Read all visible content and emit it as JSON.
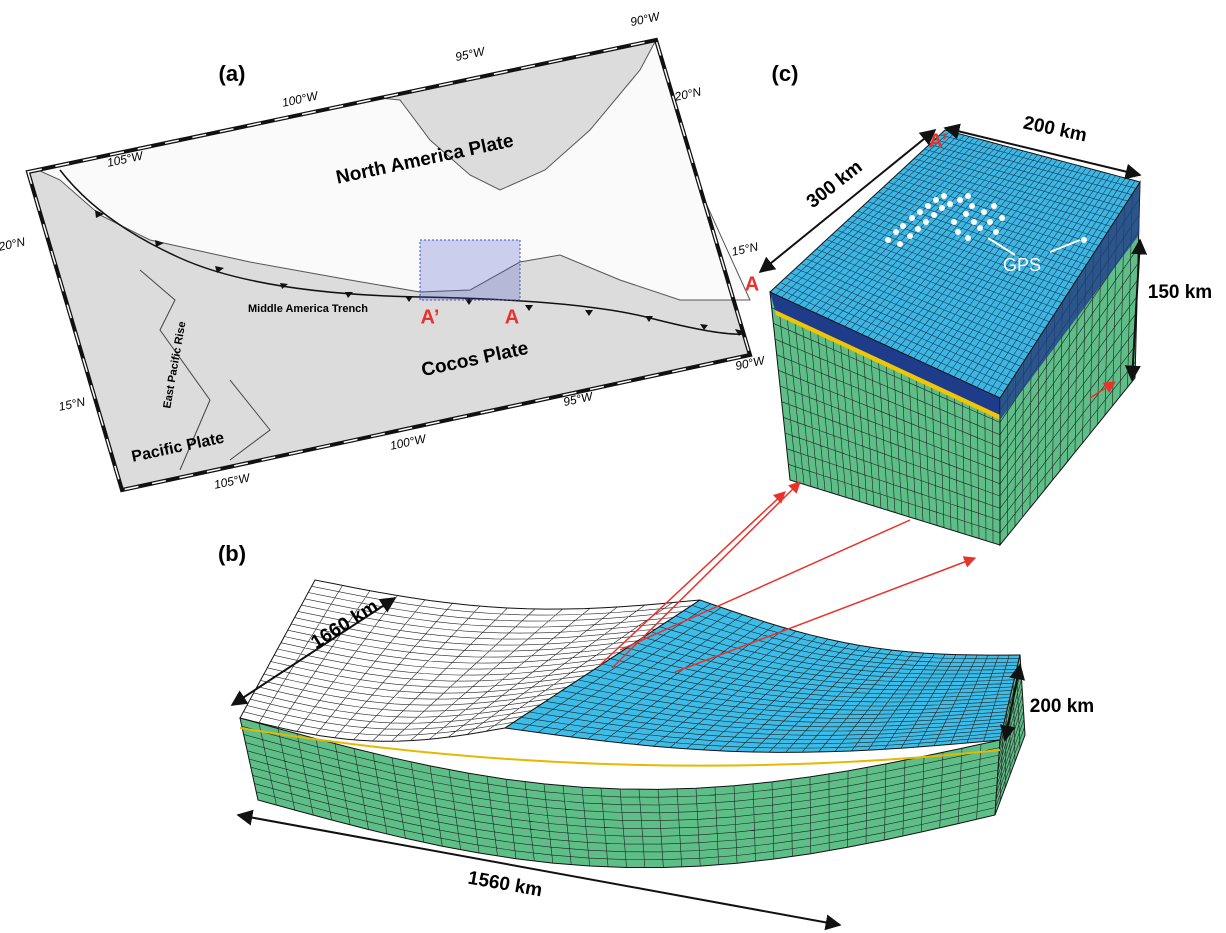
{
  "panel_a": {
    "label": "(a)",
    "plates": [
      "North America Plate",
      "Cocos Plate",
      "Pacific Plate"
    ],
    "features": [
      "Middle America Trench",
      "East Pacific Rise"
    ],
    "profile": [
      "A’",
      "A"
    ],
    "top_ticks": [
      "105°W",
      "100°W",
      "95°W",
      "90°W"
    ],
    "right_ticks": [
      "20°N",
      "15°N"
    ],
    "bottom_ticks": [
      "105°W",
      "100°W",
      "95°W",
      "90°W"
    ],
    "left_ticks": [
      "20°N",
      "15°N"
    ]
  },
  "panel_b": {
    "label": "(b)",
    "length": "1660 km",
    "width": "1560 km",
    "depth": "200 km"
  },
  "panel_c": {
    "label": "(c)",
    "width": "200 km",
    "length": "300 km",
    "depth": "150 km",
    "corners": [
      "A’",
      "A"
    ],
    "annotation": "GPS"
  }
}
